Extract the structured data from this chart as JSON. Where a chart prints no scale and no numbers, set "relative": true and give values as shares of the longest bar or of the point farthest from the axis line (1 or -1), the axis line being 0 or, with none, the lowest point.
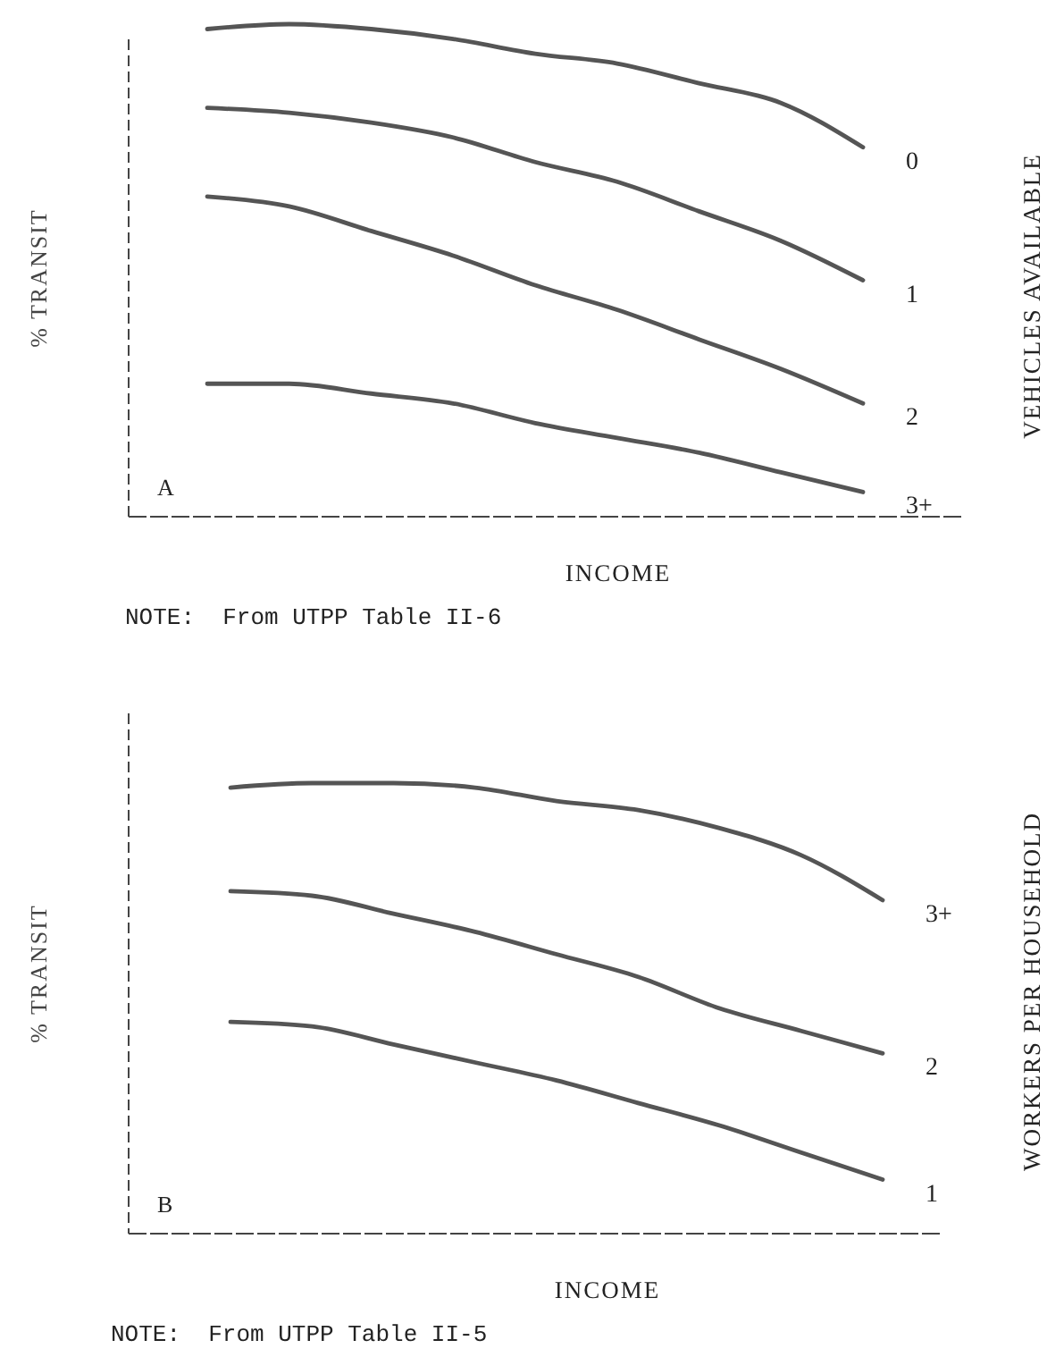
{
  "chart_data": [
    {
      "type": "line",
      "relative": true,
      "xlabel": "INCOME",
      "ylabel": "% TRANSIT",
      "legend_title": "VEHICLES AVAILABLE",
      "annotations": [
        "A",
        "NOTE:  From UTPP Table II-6"
      ],
      "categories": [
        null,
        null,
        null,
        null,
        null,
        null,
        null,
        null,
        null
      ],
      "series": [
        {
          "name": "0",
          "color": "#555555",
          "values": [
            0.99,
            1,
            0.99,
            0.97,
            0.94,
            0.92,
            0.88,
            0.84,
            0.75
          ]
        },
        {
          "name": "1",
          "color": "#555555",
          "values": [
            0.83,
            0.82,
            0.8,
            0.77,
            0.72,
            0.68,
            0.62,
            0.56,
            0.48
          ]
        },
        {
          "name": "2",
          "color": "#555555",
          "values": [
            0.65,
            0.63,
            0.58,
            0.53,
            0.47,
            0.42,
            0.36,
            0.3,
            0.23
          ]
        },
        {
          "name": "3+",
          "color": "#555555",
          "values": [
            0.27,
            0.27,
            0.25,
            0.23,
            0.19,
            0.16,
            0.13,
            0.09,
            0.05
          ]
        }
      ]
    },
    {
      "type": "line",
      "relative": true,
      "xlabel": "INCOME",
      "ylabel": "% TRANSIT",
      "legend_title": "WORKERS PER HOUSEHOLD",
      "annotations": [
        "B",
        "NOTE:  From UTPP Table II-5"
      ],
      "categories": [
        null,
        null,
        null,
        null,
        null,
        null,
        null,
        null,
        null
      ],
      "series": [
        {
          "name": "3+",
          "color": "#555555",
          "values": [
            0.99,
            1,
            1,
            0.99,
            0.96,
            0.94,
            0.9,
            0.84,
            0.74
          ]
        },
        {
          "name": "2",
          "color": "#555555",
          "values": [
            0.76,
            0.75,
            0.71,
            0.67,
            0.62,
            0.57,
            0.5,
            0.45,
            0.4
          ]
        },
        {
          "name": "1",
          "color": "#555555",
          "values": [
            0.47,
            0.46,
            0.42,
            0.38,
            0.34,
            0.29,
            0.24,
            0.18,
            0.12
          ]
        }
      ]
    }
  ]
}
